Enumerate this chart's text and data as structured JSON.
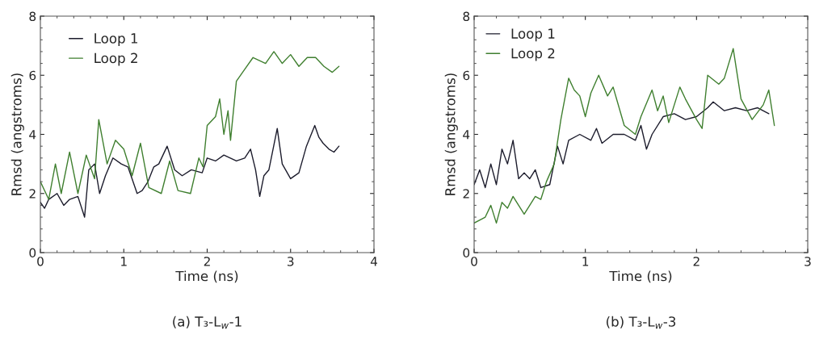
{
  "chart_data": [
    {
      "type": "line",
      "xlabel": "Time (ns)",
      "ylabel": "Rmsd (angstroms)",
      "xlim": [
        0,
        4
      ],
      "ylim": [
        0,
        8
      ],
      "xticks": [
        0,
        1,
        2,
        3,
        4
      ],
      "yticks": [
        0,
        2,
        4,
        6,
        8
      ],
      "legend": "top left",
      "grid": false,
      "annotations": [
        "(a) T₃-L$_{w}$-1"
      ],
      "series": [
        {
          "name": "Loop 1",
          "color": "#1c1c2c",
          "x": [
            0,
            0.05,
            0.1,
            0.2,
            0.28,
            0.35,
            0.45,
            0.53,
            0.58,
            0.65,
            0.71,
            0.78,
            0.87,
            0.97,
            1.05,
            1.16,
            1.22,
            1.29,
            1.36,
            1.42,
            1.52,
            1.61,
            1.7,
            1.81,
            1.94,
            2.0,
            2.1,
            2.2,
            2.35,
            2.45,
            2.52,
            2.58,
            2.63,
            2.68,
            2.74,
            2.84,
            2.9,
            3.0,
            3.1,
            3.19,
            3.29,
            3.34,
            3.39,
            3.46,
            3.52,
            3.58
          ],
          "values": [
            1.7,
            1.5,
            1.8,
            2.0,
            1.6,
            1.8,
            1.9,
            1.2,
            2.8,
            3.0,
            2.0,
            2.6,
            3.2,
            3.0,
            2.9,
            2.0,
            2.1,
            2.4,
            2.9,
            3.0,
            3.6,
            2.8,
            2.6,
            2.8,
            2.7,
            3.2,
            3.1,
            3.3,
            3.1,
            3.2,
            3.5,
            2.8,
            1.9,
            2.6,
            2.8,
            4.2,
            3.0,
            2.5,
            2.7,
            3.6,
            4.3,
            3.9,
            3.7,
            3.5,
            3.4,
            3.6
          ]
        },
        {
          "name": "Loop 2",
          "color": "#3f7f2f",
          "x": [
            0,
            0.1,
            0.18,
            0.25,
            0.35,
            0.45,
            0.55,
            0.65,
            0.7,
            0.8,
            0.9,
            1.0,
            1.1,
            1.2,
            1.3,
            1.45,
            1.55,
            1.65,
            1.8,
            1.9,
            1.95,
            2.0,
            2.1,
            2.15,
            2.2,
            2.25,
            2.28,
            2.35,
            2.45,
            2.55,
            2.7,
            2.8,
            2.9,
            3.0,
            3.1,
            3.2,
            3.3,
            3.4,
            3.5,
            3.58
          ],
          "values": [
            2.4,
            1.8,
            3.0,
            2.0,
            3.4,
            2.0,
            3.3,
            2.5,
            4.5,
            3.0,
            3.8,
            3.5,
            2.6,
            3.7,
            2.2,
            2.0,
            3.1,
            2.1,
            2.0,
            3.2,
            2.9,
            4.3,
            4.6,
            5.2,
            4.0,
            4.8,
            3.8,
            5.8,
            6.2,
            6.6,
            6.4,
            6.8,
            6.4,
            6.7,
            6.3,
            6.6,
            6.6,
            6.3,
            6.1,
            6.3
          ]
        }
      ]
    },
    {
      "type": "line",
      "xlabel": "Time (ns)",
      "ylabel": "Rmsd (angstroms)",
      "xlim": [
        0,
        3
      ],
      "ylim": [
        0,
        8
      ],
      "xticks": [
        0,
        1,
        2,
        3
      ],
      "yticks": [
        0,
        2,
        4,
        6,
        8
      ],
      "legend": "top left",
      "grid": false,
      "annotations": [
        "(b) T₃-L$_{w}$-3"
      ],
      "series": [
        {
          "name": "Loop 1",
          "color": "#1c1c2c",
          "x": [
            0,
            0.05,
            0.1,
            0.15,
            0.2,
            0.25,
            0.3,
            0.35,
            0.4,
            0.45,
            0.5,
            0.55,
            0.6,
            0.68,
            0.75,
            0.8,
            0.85,
            0.95,
            1.05,
            1.1,
            1.15,
            1.25,
            1.35,
            1.45,
            1.5,
            1.55,
            1.6,
            1.7,
            1.8,
            1.9,
            2.0,
            2.1,
            2.15,
            2.25,
            2.35,
            2.45,
            2.55,
            2.65
          ],
          "values": [
            2.3,
            2.8,
            2.2,
            3.0,
            2.3,
            3.5,
            3.0,
            3.8,
            2.5,
            2.7,
            2.5,
            2.8,
            2.2,
            2.3,
            3.6,
            3.0,
            3.8,
            4.0,
            3.8,
            4.2,
            3.7,
            4.0,
            4.0,
            3.8,
            4.3,
            3.5,
            4.0,
            4.6,
            4.7,
            4.5,
            4.6,
            4.9,
            5.1,
            4.8,
            4.9,
            4.8,
            4.9,
            4.7
          ]
        },
        {
          "name": "Loop 2",
          "color": "#3f7f2f",
          "x": [
            0,
            0.1,
            0.15,
            0.2,
            0.25,
            0.3,
            0.35,
            0.4,
            0.45,
            0.55,
            0.6,
            0.65,
            0.72,
            0.78,
            0.85,
            0.9,
            0.95,
            1.0,
            1.05,
            1.12,
            1.2,
            1.25,
            1.35,
            1.45,
            1.5,
            1.6,
            1.65,
            1.7,
            1.75,
            1.85,
            1.9,
            2.0,
            2.05,
            2.1,
            2.2,
            2.25,
            2.33,
            2.4,
            2.5,
            2.6,
            2.65,
            2.7
          ],
          "values": [
            1.0,
            1.2,
            1.6,
            1.0,
            1.7,
            1.5,
            1.9,
            1.6,
            1.3,
            1.9,
            1.8,
            2.4,
            3.0,
            4.5,
            5.9,
            5.5,
            5.3,
            4.6,
            5.4,
            6.0,
            5.3,
            5.6,
            4.3,
            4.0,
            4.6,
            5.5,
            4.8,
            5.3,
            4.4,
            5.6,
            5.2,
            4.5,
            4.2,
            6.0,
            5.7,
            5.9,
            6.9,
            5.2,
            4.5,
            5.0,
            5.5,
            4.3
          ]
        }
      ]
    }
  ]
}
